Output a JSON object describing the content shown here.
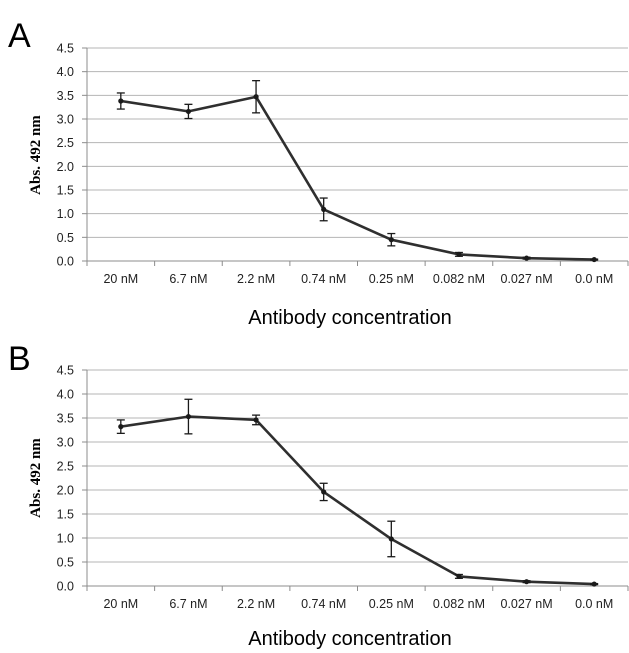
{
  "chart_data": [
    {
      "type": "line",
      "panel": "A",
      "categories": [
        "20 nM",
        "6.7 nM",
        "2.2 nM",
        "0.74 nM",
        "0.25 nM",
        "0.082 nM",
        "0.027 nM",
        "0.0 nM"
      ],
      "values": [
        3.38,
        3.16,
        3.47,
        1.09,
        0.45,
        0.14,
        0.06,
        0.03
      ],
      "errors": [
        0.17,
        0.15,
        0.34,
        0.24,
        0.13,
        0.04,
        0.02,
        0.01
      ],
      "xlabel": "Antibody concentration",
      "ylabel": "Abs. 492 nm",
      "ylim": [
        0,
        4.5
      ],
      "yticks": [
        "0.0",
        "0.5",
        "1.0",
        "1.5",
        "2.0",
        "2.5",
        "3.0",
        "3.5",
        "4.0",
        "4.5"
      ],
      "grid": true,
      "series_color": "#2f2f2f"
    },
    {
      "type": "line",
      "panel": "B",
      "categories": [
        "20 nM",
        "6.7 nM",
        "2.2 nM",
        "0.74 nM",
        "0.25 nM",
        "0.082 nM",
        "0.027 nM",
        "0.0 nM"
      ],
      "values": [
        3.32,
        3.53,
        3.46,
        1.96,
        0.98,
        0.2,
        0.09,
        0.04
      ],
      "errors": [
        0.14,
        0.36,
        0.1,
        0.18,
        0.37,
        0.04,
        0.02,
        0.01
      ],
      "xlabel": "Antibody concentration",
      "ylabel": "Abs. 492 nm",
      "ylim": [
        0,
        4.5
      ],
      "yticks": [
        "0.0",
        "0.5",
        "1.0",
        "1.5",
        "2.0",
        "2.5",
        "3.0",
        "3.5",
        "4.0",
        "4.5"
      ],
      "grid": true,
      "series_color": "#2f2f2f"
    }
  ]
}
